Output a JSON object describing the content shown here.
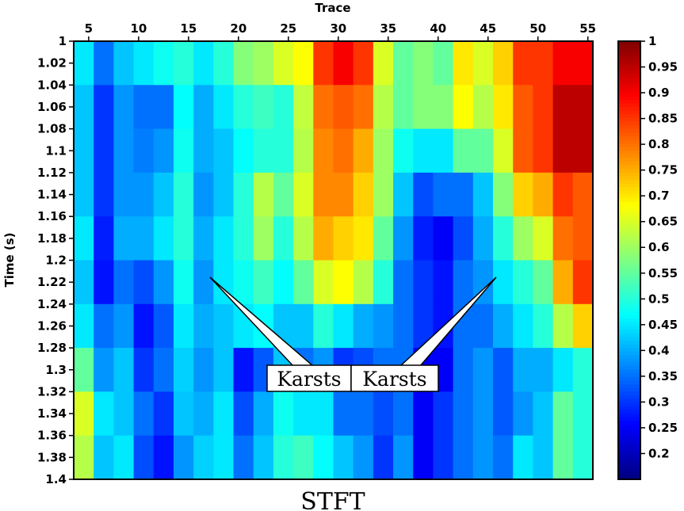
{
  "chart_data": {
    "type": "heatmap",
    "title": "STFT",
    "xlabel": "Trace",
    "ylabel": "Time (s)",
    "x_ticks": [
      5,
      10,
      15,
      20,
      25,
      30,
      35,
      40,
      45,
      50,
      55
    ],
    "y_ticks": [
      "1",
      "1.02",
      "1.04",
      "1.06",
      "1.08",
      "1.1",
      "1.12",
      "1.14",
      "1.16",
      "1.18",
      "1.2",
      "1.22",
      "1.24",
      "1.26",
      "1.28",
      "1.3",
      "1.32",
      "1.34",
      "1.36",
      "1.38",
      "1.4"
    ],
    "xlim": [
      3.5,
      55.5
    ],
    "ylim": [
      1.0,
      1.4
    ],
    "x_bin_traces": 2,
    "y_bin_seconds": 0.04,
    "colormap": "jet",
    "clim": [
      0.15,
      1.0
    ],
    "colorbar_ticks": [
      "0.2",
      "0.25",
      "0.3",
      "0.35",
      "0.4",
      "0.45",
      "0.5",
      "0.55",
      "0.6",
      "0.65",
      "0.7",
      "0.75",
      "0.8",
      "0.85",
      "0.9",
      "0.95",
      "1"
    ],
    "values": [
      [
        0.45,
        0.35,
        0.42,
        0.45,
        0.48,
        0.5,
        0.45,
        0.5,
        0.58,
        0.6,
        0.65,
        0.68,
        0.85,
        0.9,
        0.85,
        0.65,
        0.55,
        0.58,
        0.55,
        0.7,
        0.65,
        0.72,
        0.85,
        0.85,
        0.9,
        0.9
      ],
      [
        0.42,
        0.3,
        0.38,
        0.35,
        0.35,
        0.47,
        0.4,
        0.45,
        0.5,
        0.52,
        0.5,
        0.63,
        0.8,
        0.82,
        0.8,
        0.62,
        0.55,
        0.58,
        0.58,
        0.68,
        0.62,
        0.7,
        0.82,
        0.85,
        0.95,
        0.95
      ],
      [
        0.42,
        0.3,
        0.38,
        0.36,
        0.38,
        0.48,
        0.4,
        0.42,
        0.47,
        0.5,
        0.5,
        0.62,
        0.78,
        0.8,
        0.75,
        0.6,
        0.48,
        0.45,
        0.45,
        0.55,
        0.55,
        0.65,
        0.82,
        0.85,
        0.95,
        0.95
      ],
      [
        0.42,
        0.3,
        0.38,
        0.38,
        0.42,
        0.5,
        0.38,
        0.42,
        0.5,
        0.62,
        0.55,
        0.65,
        0.78,
        0.78,
        0.72,
        0.6,
        0.42,
        0.32,
        0.35,
        0.35,
        0.42,
        0.58,
        0.72,
        0.75,
        0.85,
        0.82
      ],
      [
        0.45,
        0.28,
        0.4,
        0.4,
        0.45,
        0.5,
        0.4,
        0.45,
        0.5,
        0.6,
        0.5,
        0.62,
        0.75,
        0.72,
        0.7,
        0.55,
        0.38,
        0.28,
        0.25,
        0.32,
        0.4,
        0.5,
        0.6,
        0.65,
        0.8,
        0.82
      ],
      [
        0.42,
        0.27,
        0.35,
        0.32,
        0.38,
        0.48,
        0.38,
        0.45,
        0.48,
        0.52,
        0.47,
        0.55,
        0.65,
        0.68,
        0.62,
        0.5,
        0.35,
        0.3,
        0.27,
        0.35,
        0.38,
        0.45,
        0.5,
        0.55,
        0.75,
        0.85
      ],
      [
        0.45,
        0.35,
        0.38,
        0.27,
        0.33,
        0.45,
        0.4,
        0.42,
        0.45,
        0.47,
        0.42,
        0.42,
        0.5,
        0.45,
        0.4,
        0.38,
        0.35,
        0.3,
        0.27,
        0.35,
        0.35,
        0.4,
        0.45,
        0.5,
        0.62,
        0.72
      ],
      [
        0.55,
        0.38,
        0.42,
        0.3,
        0.35,
        0.43,
        0.38,
        0.42,
        0.27,
        0.33,
        0.42,
        0.35,
        0.38,
        0.3,
        0.32,
        0.35,
        0.35,
        0.25,
        0.25,
        0.35,
        0.38,
        0.33,
        0.4,
        0.4,
        0.45,
        0.5
      ],
      [
        0.65,
        0.45,
        0.42,
        0.35,
        0.3,
        0.42,
        0.4,
        0.45,
        0.32,
        0.4,
        0.48,
        0.45,
        0.45,
        0.35,
        0.35,
        0.32,
        0.35,
        0.25,
        0.3,
        0.35,
        0.38,
        0.33,
        0.38,
        0.42,
        0.55,
        0.5
      ],
      [
        0.62,
        0.42,
        0.45,
        0.32,
        0.27,
        0.38,
        0.43,
        0.45,
        0.35,
        0.42,
        0.5,
        0.52,
        0.47,
        0.42,
        0.38,
        0.3,
        0.38,
        0.25,
        0.3,
        0.35,
        0.38,
        0.35,
        0.45,
        0.42,
        0.55,
        0.5
      ]
    ],
    "annotations": [
      {
        "text": "Karsts",
        "points_to_trace": 17.2,
        "points_to_time": 1.215
      },
      {
        "text": "Karsts",
        "points_to_trace": 46.2,
        "points_to_time": 1.215
      }
    ]
  }
}
